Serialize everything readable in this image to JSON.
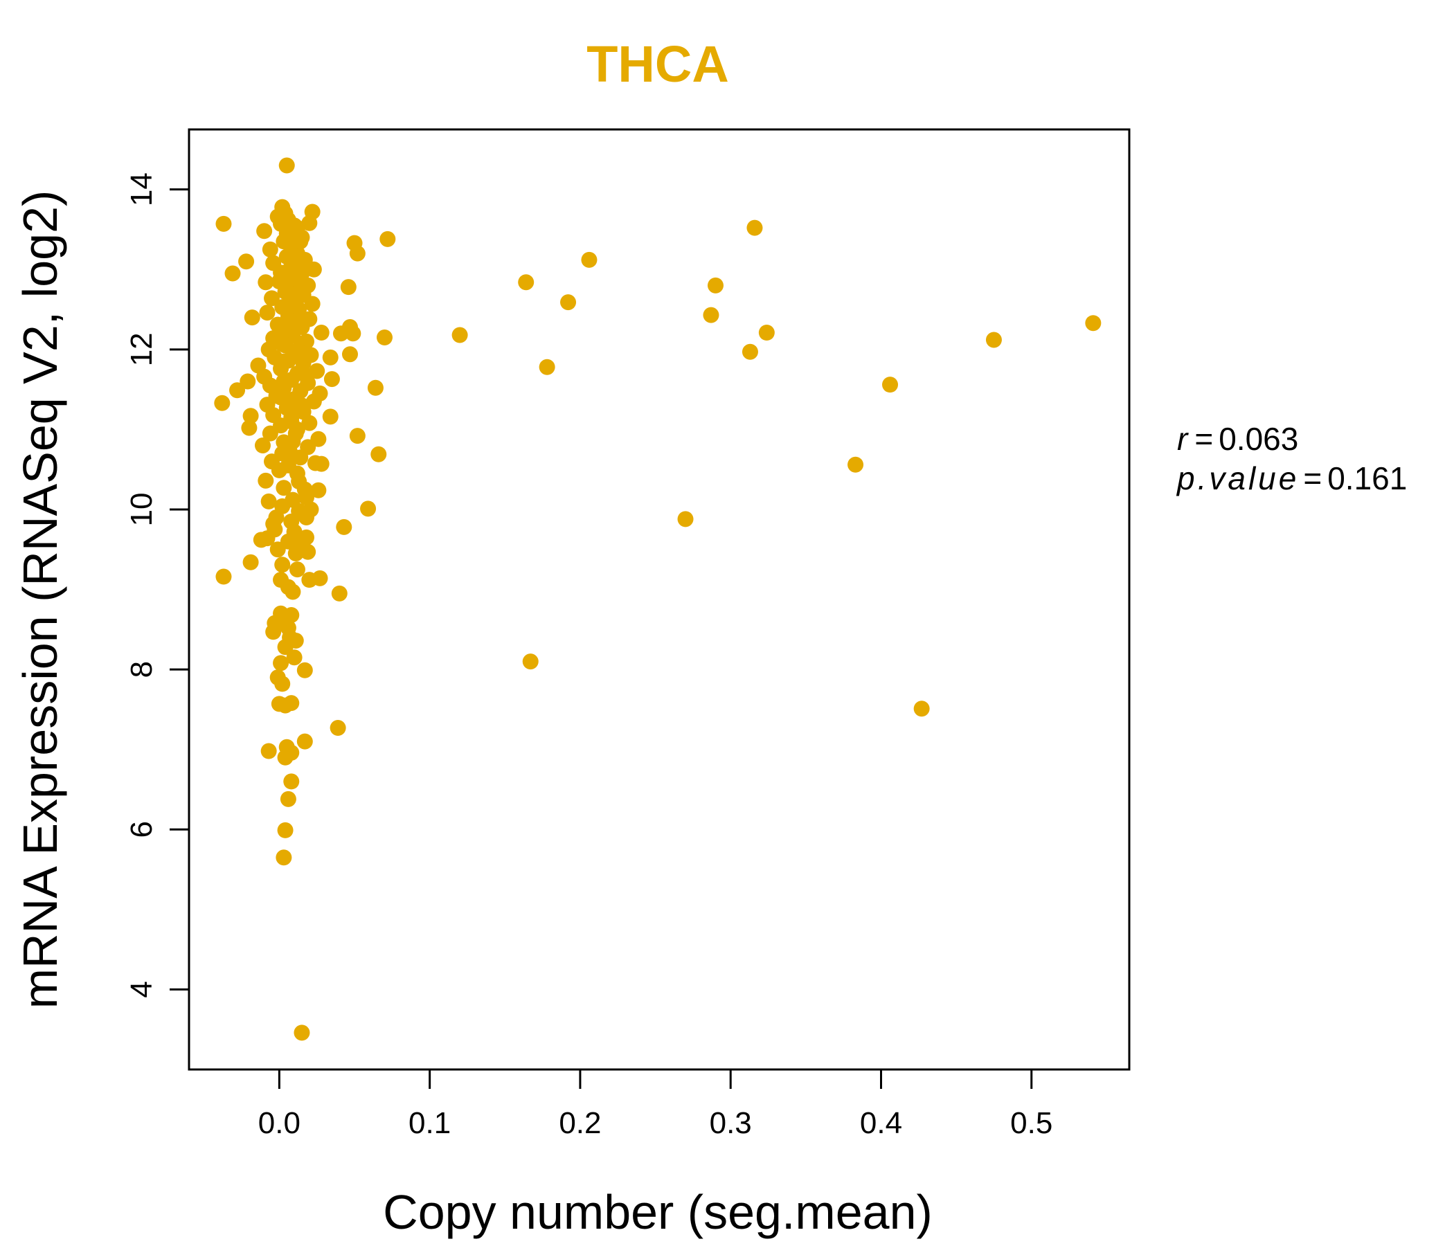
{
  "colors": {
    "point": "#E5AA00",
    "title": "#E5AA00",
    "axis": "#000000",
    "background": "#FFFFFF"
  },
  "chart_data": {
    "type": "scatter",
    "title": "THCA",
    "xlabel": "Copy number (seg.mean)",
    "ylabel": "mRNA Expression (RNASeq V2, log2)",
    "xlim": [
      -0.06,
      0.565
    ],
    "ylim": [
      3.0,
      14.75
    ],
    "xticks": [
      0.0,
      0.1,
      0.2,
      0.3,
      0.4,
      0.5
    ],
    "xtick_labels": [
      "0.0",
      "0.1",
      "0.2",
      "0.3",
      "0.4",
      "0.5"
    ],
    "yticks": [
      4,
      6,
      8,
      10,
      12,
      14
    ],
    "ytick_labels": [
      "4",
      "6",
      "8",
      "10",
      "12",
      "14"
    ],
    "stats": {
      "r_label": "r",
      "r_value": "0.063",
      "p_label": "p.value",
      "p_value": "0.161"
    },
    "points": [
      {
        "x": 0.005,
        "y": 14.3
      },
      {
        "x": -0.037,
        "y": 13.57
      },
      {
        "x": 0.002,
        "y": 13.78
      },
      {
        "x": 0.022,
        "y": 13.72
      },
      {
        "x": 0.316,
        "y": 13.52
      },
      {
        "x": 0.072,
        "y": 13.38
      },
      {
        "x": 0.05,
        "y": 13.33
      },
      {
        "x": 0.052,
        "y": 13.2
      },
      {
        "x": -0.022,
        "y": 13.1
      },
      {
        "x": 0.206,
        "y": 13.12
      },
      {
        "x": -0.031,
        "y": 12.95
      },
      {
        "x": 0.164,
        "y": 12.84
      },
      {
        "x": 0.29,
        "y": 12.8
      },
      {
        "x": 0.046,
        "y": 12.78
      },
      {
        "x": 0.192,
        "y": 12.59
      },
      {
        "x": 0.287,
        "y": 12.43
      },
      {
        "x": -0.018,
        "y": 12.4
      },
      {
        "x": 0.047,
        "y": 12.28
      },
      {
        "x": 0.049,
        "y": 12.2
      },
      {
        "x": 0.041,
        "y": 12.2
      },
      {
        "x": 0.541,
        "y": 12.33
      },
      {
        "x": 0.12,
        "y": 12.18
      },
      {
        "x": 0.07,
        "y": 12.15
      },
      {
        "x": 0.324,
        "y": 12.21
      },
      {
        "x": 0.475,
        "y": 12.12
      },
      {
        "x": 0.313,
        "y": 11.97
      },
      {
        "x": 0.047,
        "y": 11.94
      },
      {
        "x": 0.034,
        "y": 11.9
      },
      {
        "x": 0.178,
        "y": 11.78
      },
      {
        "x": 0.035,
        "y": 11.63
      },
      {
        "x": 0.406,
        "y": 11.56
      },
      {
        "x": 0.064,
        "y": 11.52
      },
      {
        "x": -0.021,
        "y": 11.6
      },
      {
        "x": -0.028,
        "y": 11.49
      },
      {
        "x": -0.038,
        "y": 11.33
      },
      {
        "x": -0.019,
        "y": 11.17
      },
      {
        "x": -0.02,
        "y": 11.02
      },
      {
        "x": 0.034,
        "y": 11.16
      },
      {
        "x": 0.052,
        "y": 10.92
      },
      {
        "x": 0.066,
        "y": 10.69
      },
      {
        "x": 0.383,
        "y": 10.56
      },
      {
        "x": 0.028,
        "y": 10.57
      },
      {
        "x": 0.026,
        "y": 10.24
      },
      {
        "x": 0.059,
        "y": 10.01
      },
      {
        "x": 0.27,
        "y": 9.88
      },
      {
        "x": 0.043,
        "y": 9.78
      },
      {
        "x": -0.019,
        "y": 9.34
      },
      {
        "x": -0.037,
        "y": 9.16
      },
      {
        "x": 0.027,
        "y": 9.14
      },
      {
        "x": 0.04,
        "y": 8.95
      },
      {
        "x": 0.167,
        "y": 8.1
      },
      {
        "x": 0.427,
        "y": 7.51
      },
      {
        "x": 0.039,
        "y": 7.27
      },
      {
        "x": 0.017,
        "y": 7.1
      },
      {
        "x": 0.017,
        "y": 7.99
      },
      {
        "x": -0.007,
        "y": 6.98
      },
      {
        "x": 0.005,
        "y": 7.03
      },
      {
        "x": 0.008,
        "y": 6.96
      },
      {
        "x": 0.004,
        "y": 6.9
      },
      {
        "x": 0.008,
        "y": 6.6
      },
      {
        "x": 0.006,
        "y": 6.38
      },
      {
        "x": 0.004,
        "y": 5.99
      },
      {
        "x": 0.003,
        "y": 5.65
      },
      {
        "x": 0.015,
        "y": 3.46
      },
      {
        "x": 0.0,
        "y": 7.57
      },
      {
        "x": 0.004,
        "y": 7.55
      },
      {
        "x": 0.008,
        "y": 7.58
      },
      {
        "x": 0.002,
        "y": 7.82
      },
      {
        "x": -0.001,
        "y": 7.9
      },
      {
        "x": 0.001,
        "y": 8.08
      },
      {
        "x": 0.01,
        "y": 8.15
      },
      {
        "x": 0.004,
        "y": 8.28
      },
      {
        "x": 0.011,
        "y": 8.36
      },
      {
        "x": 0.007,
        "y": 8.4
      },
      {
        "x": -0.004,
        "y": 8.47
      },
      {
        "x": 0.006,
        "y": 8.52
      },
      {
        "x": -0.003,
        "y": 8.58
      },
      {
        "x": 0.004,
        "y": 8.65
      },
      {
        "x": 0.001,
        "y": 8.7
      },
      {
        "x": 0.008,
        "y": 8.68
      },
      {
        "x": 0.009,
        "y": 8.97
      },
      {
        "x": 0.006,
        "y": 9.03
      },
      {
        "x": 0.001,
        "y": 9.12
      },
      {
        "x": 0.012,
        "y": 9.25
      },
      {
        "x": 0.002,
        "y": 9.31
      },
      {
        "x": 0.019,
        "y": 9.47
      },
      {
        "x": 0.014,
        "y": 9.55
      },
      {
        "x": -0.012,
        "y": 9.62
      },
      {
        "x": -0.008,
        "y": 9.64
      },
      {
        "x": 0.02,
        "y": 9.12
      },
      {
        "x": 0.018,
        "y": 9.65
      },
      {
        "x": 0.01,
        "y": 9.72
      },
      {
        "x": -0.004,
        "y": 9.82
      },
      {
        "x": 0.018,
        "y": 9.9
      },
      {
        "x": 0.013,
        "y": 9.98
      },
      {
        "x": 0.021,
        "y": 10.0
      },
      {
        "x": 0.002,
        "y": 10.04
      },
      {
        "x": -0.007,
        "y": 10.1
      },
      {
        "x": 0.009,
        "y": 10.12
      },
      {
        "x": 0.017,
        "y": 10.25
      },
      {
        "x": 0.003,
        "y": 10.27
      },
      {
        "x": -0.009,
        "y": 10.36
      },
      {
        "x": 0.012,
        "y": 10.45
      },
      {
        "x": 0.0,
        "y": 10.49
      },
      {
        "x": -0.005,
        "y": 10.6
      },
      {
        "x": 0.014,
        "y": 10.65
      },
      {
        "x": 0.024,
        "y": 10.58
      },
      {
        "x": 0.007,
        "y": 10.72
      },
      {
        "x": 0.019,
        "y": 10.78
      },
      {
        "x": -0.011,
        "y": 10.8
      },
      {
        "x": 0.003,
        "y": 10.84
      },
      {
        "x": 0.026,
        "y": 10.88
      },
      {
        "x": -0.006,
        "y": 10.95
      },
      {
        "x": 0.012,
        "y": 11.0
      },
      {
        "x": 0.001,
        "y": 11.05
      },
      {
        "x": 0.02,
        "y": 11.08
      },
      {
        "x": 0.008,
        "y": 11.15
      },
      {
        "x": -0.004,
        "y": 11.18
      },
      {
        "x": 0.016,
        "y": 11.22
      },
      {
        "x": 0.005,
        "y": 11.27
      },
      {
        "x": -0.008,
        "y": 11.31
      },
      {
        "x": 0.023,
        "y": 11.35
      },
      {
        "x": 0.01,
        "y": 11.38
      },
      {
        "x": -0.002,
        "y": 11.42
      },
      {
        "x": 0.027,
        "y": 11.45
      },
      {
        "x": 0.014,
        "y": 11.48
      },
      {
        "x": 0.003,
        "y": 11.52
      },
      {
        "x": -0.006,
        "y": 11.55
      },
      {
        "x": 0.019,
        "y": 11.58
      },
      {
        "x": 0.008,
        "y": 11.62
      },
      {
        "x": -0.01,
        "y": 11.66
      },
      {
        "x": 0.012,
        "y": 11.7
      },
      {
        "x": 0.025,
        "y": 11.73
      },
      {
        "x": 0.001,
        "y": 11.76
      },
      {
        "x": -0.014,
        "y": 11.8
      },
      {
        "x": 0.016,
        "y": 11.83
      },
      {
        "x": 0.006,
        "y": 11.86
      },
      {
        "x": -0.003,
        "y": 11.9
      },
      {
        "x": 0.021,
        "y": 11.93
      },
      {
        "x": 0.01,
        "y": 11.96
      },
      {
        "x": -0.007,
        "y": 12.0
      },
      {
        "x": 0.014,
        "y": 12.03
      },
      {
        "x": 0.002,
        "y": 12.07
      },
      {
        "x": 0.018,
        "y": 12.1
      },
      {
        "x": -0.004,
        "y": 12.14
      },
      {
        "x": 0.009,
        "y": 12.17
      },
      {
        "x": 0.028,
        "y": 12.21
      },
      {
        "x": 0.004,
        "y": 12.24
      },
      {
        "x": 0.015,
        "y": 12.28
      },
      {
        "x": -0.001,
        "y": 12.31
      },
      {
        "x": 0.011,
        "y": 12.35
      },
      {
        "x": 0.02,
        "y": 12.38
      },
      {
        "x": 0.006,
        "y": 12.42
      },
      {
        "x": -0.008,
        "y": 12.46
      },
      {
        "x": 0.013,
        "y": 12.5
      },
      {
        "x": 0.002,
        "y": 12.53
      },
      {
        "x": 0.022,
        "y": 12.57
      },
      {
        "x": 0.008,
        "y": 12.6
      },
      {
        "x": -0.005,
        "y": 12.64
      },
      {
        "x": 0.016,
        "y": 12.68
      },
      {
        "x": 0.004,
        "y": 12.72
      },
      {
        "x": 0.011,
        "y": 12.76
      },
      {
        "x": 0.019,
        "y": 12.8
      },
      {
        "x": -0.009,
        "y": 12.84
      },
      {
        "x": 0.007,
        "y": 12.88
      },
      {
        "x": 0.014,
        "y": 12.92
      },
      {
        "x": 0.001,
        "y": 12.96
      },
      {
        "x": 0.023,
        "y": 13.0
      },
      {
        "x": 0.01,
        "y": 13.04
      },
      {
        "x": -0.004,
        "y": 13.08
      },
      {
        "x": 0.017,
        "y": 13.12
      },
      {
        "x": 0.005,
        "y": 13.16
      },
      {
        "x": 0.012,
        "y": 13.2
      },
      {
        "x": -0.006,
        "y": 13.25
      },
      {
        "x": 0.009,
        "y": 13.3
      },
      {
        "x": 0.003,
        "y": 13.35
      },
      {
        "x": 0.015,
        "y": 13.4
      },
      {
        "x": 0.007,
        "y": 13.45
      },
      {
        "x": -0.01,
        "y": 13.48
      },
      {
        "x": 0.012,
        "y": 13.52
      },
      {
        "x": 0.001,
        "y": 13.57
      },
      {
        "x": 0.02,
        "y": 13.58
      },
      {
        "x": 0.006,
        "y": 13.62
      },
      {
        "x": -0.001,
        "y": 13.66
      },
      {
        "x": 0.01,
        "y": 13.55
      },
      {
        "x": 0.004,
        "y": 13.7
      },
      {
        "x": 0.008,
        "y": 11.1
      },
      {
        "x": 0.002,
        "y": 10.7
      },
      {
        "x": 0.013,
        "y": 10.35
      },
      {
        "x": -0.002,
        "y": 9.9
      },
      {
        "x": 0.006,
        "y": 9.6
      },
      {
        "x": 0.011,
        "y": 9.45
      },
      {
        "x": -0.003,
        "y": 9.75
      },
      {
        "x": 0.009,
        "y": 10.85
      },
      {
        "x": 0.015,
        "y": 11.3
      },
      {
        "x": 0.003,
        "y": 11.6
      },
      {
        "x": 0.017,
        "y": 11.95
      },
      {
        "x": 0.005,
        "y": 12.25
      },
      {
        "x": 0.012,
        "y": 12.65
      },
      {
        "x": 0.007,
        "y": 13.0
      },
      {
        "x": 0.014,
        "y": 13.35
      },
      {
        "x": 0.0,
        "y": 12.85
      },
      {
        "x": 0.01,
        "y": 12.45
      },
      {
        "x": 0.004,
        "y": 12.05
      },
      {
        "x": 0.016,
        "y": 11.7
      },
      {
        "x": 0.001,
        "y": 11.4
      },
      {
        "x": 0.011,
        "y": 10.95
      },
      {
        "x": 0.006,
        "y": 10.55
      },
      {
        "x": 0.018,
        "y": 10.15
      },
      {
        "x": 0.008,
        "y": 9.85
      },
      {
        "x": -0.001,
        "y": 9.5
      },
      {
        "x": 0.013,
        "y": 11.25
      },
      {
        "x": 0.003,
        "y": 11.85
      },
      {
        "x": 0.009,
        "y": 12.35
      },
      {
        "x": 0.015,
        "y": 12.95
      },
      {
        "x": 0.005,
        "y": 13.45
      }
    ]
  }
}
